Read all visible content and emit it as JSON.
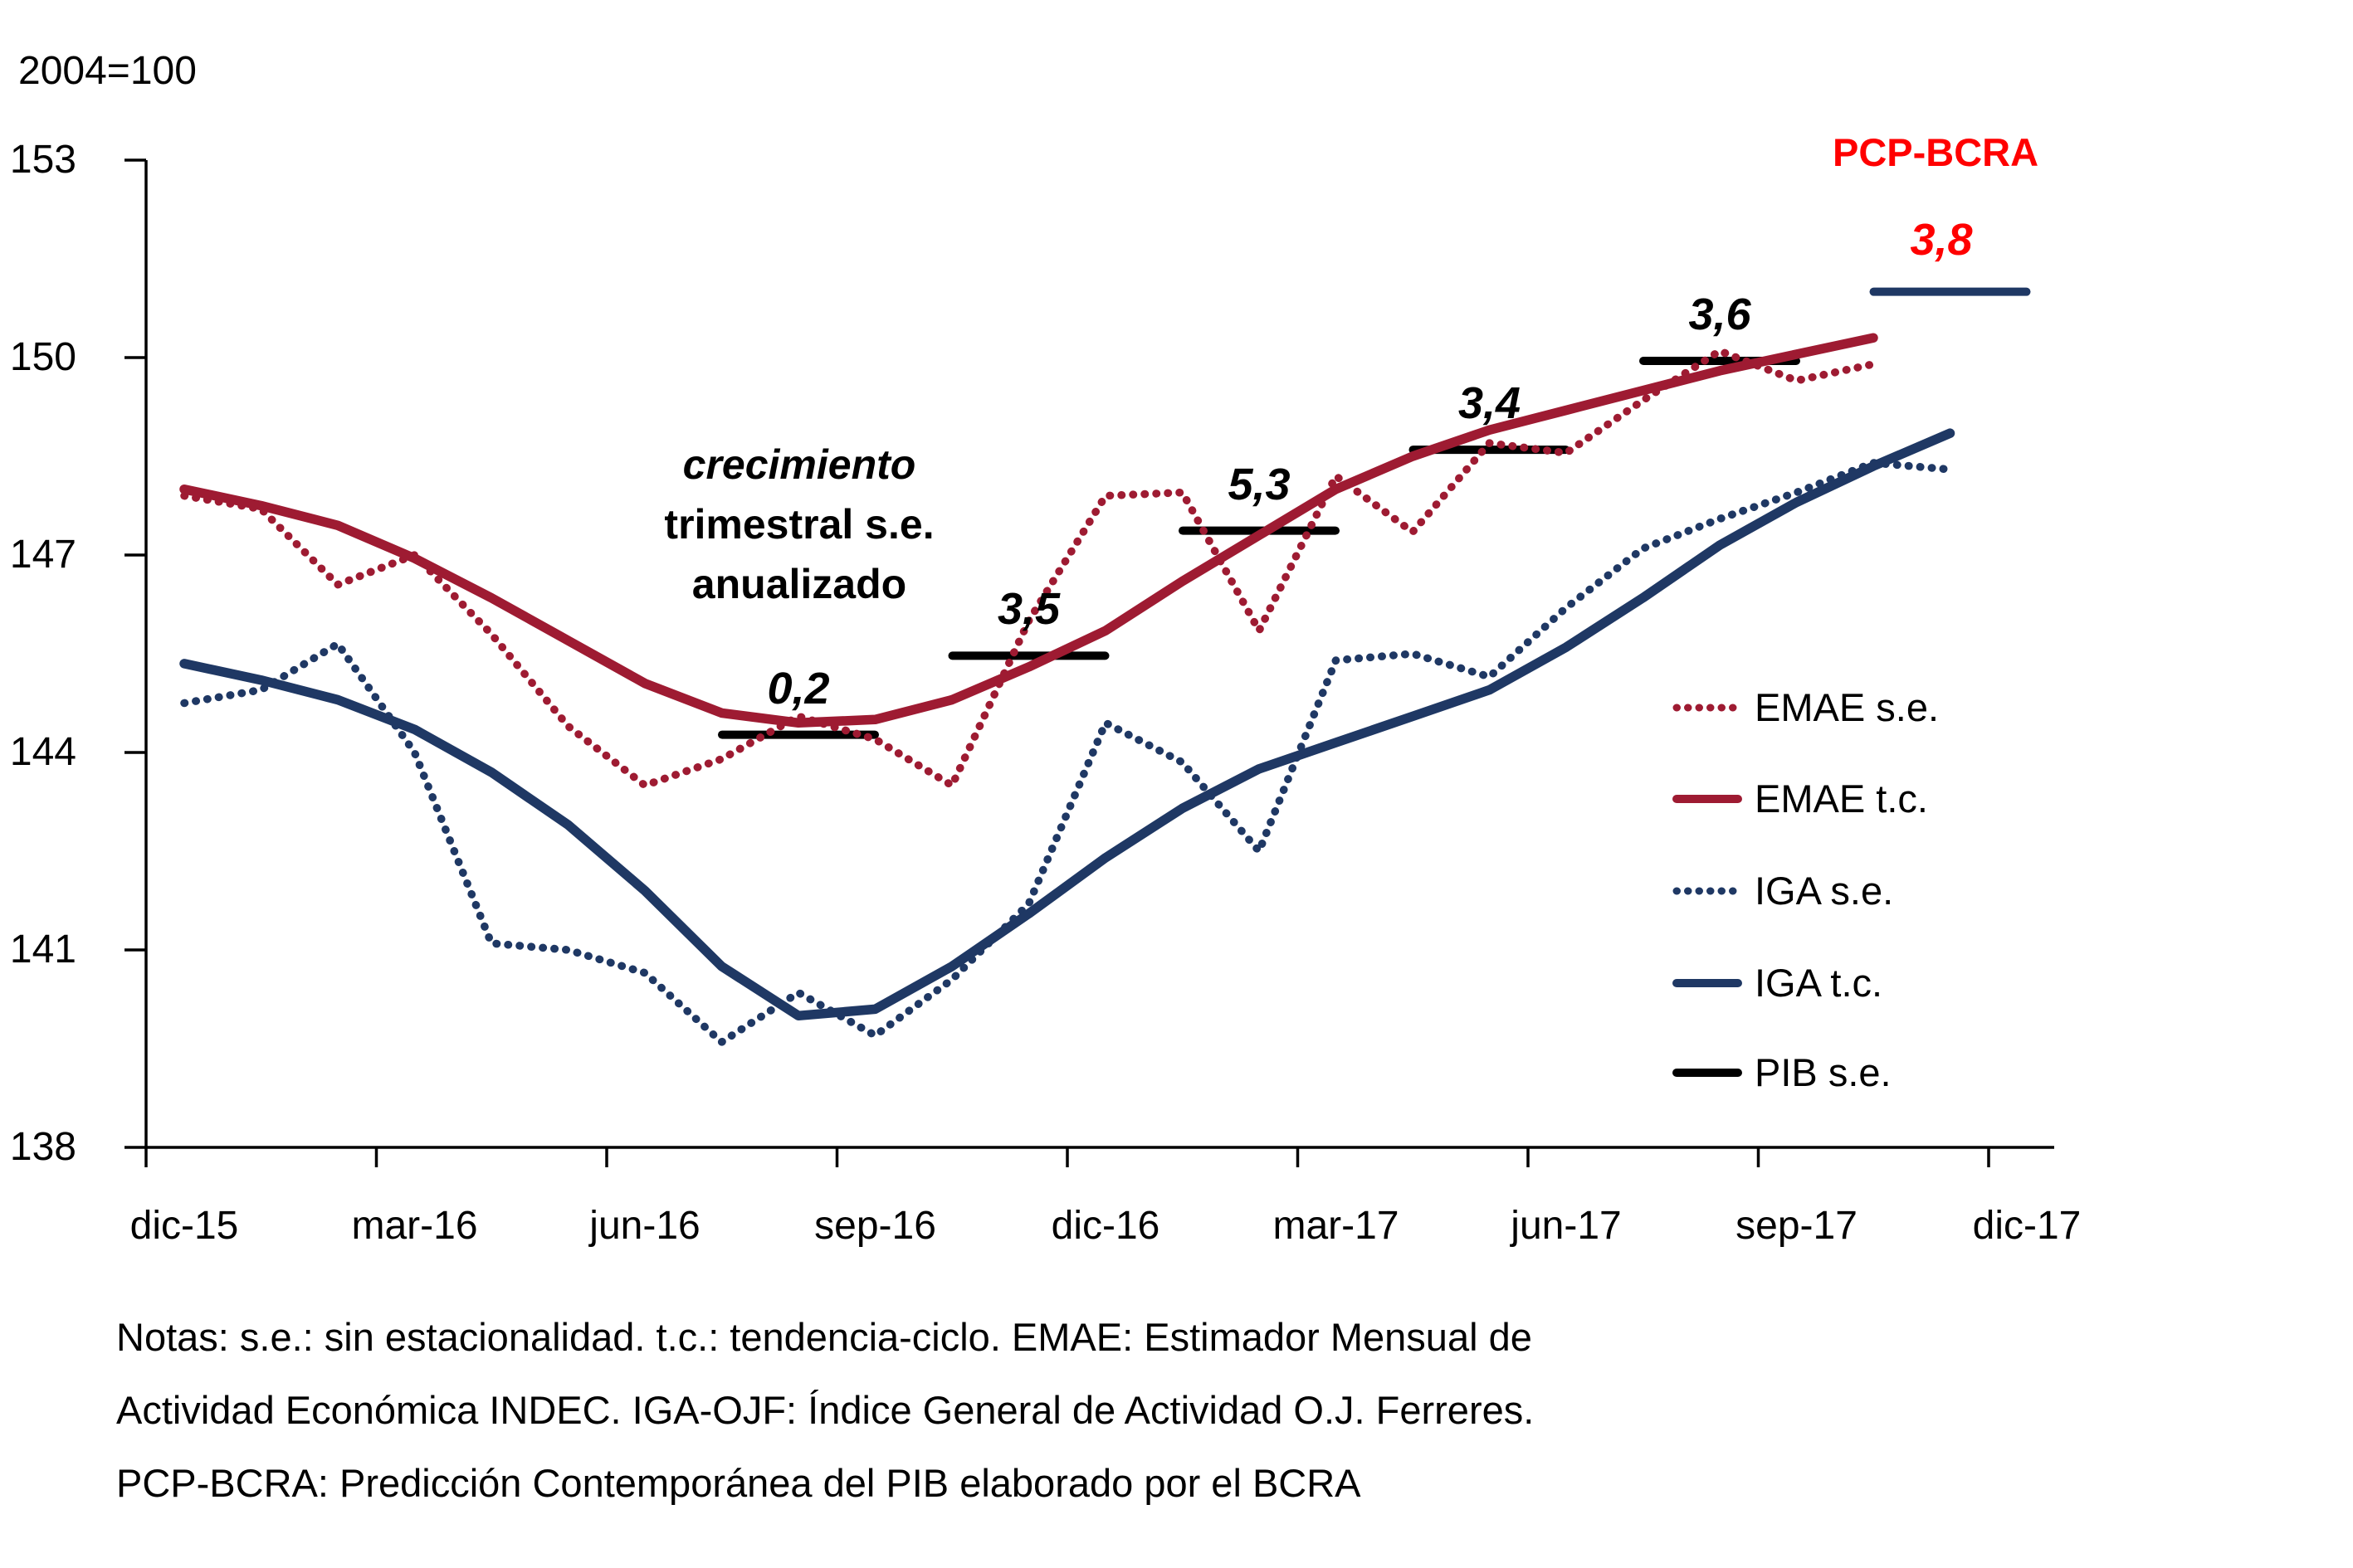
{
  "header": {
    "index_base": "2004=100"
  },
  "chart_data": {
    "type": "line",
    "title": "",
    "ylim": [
      138,
      153
    ],
    "yticks": [
      153,
      150,
      147,
      144,
      141,
      138
    ],
    "grid": "off",
    "legend_position": "middle-right",
    "x_quarter_labels": [
      "dic-15",
      "mar-16",
      "jun-16",
      "sep-16",
      "dic-16",
      "mar-17",
      "jun-17",
      "sep-17",
      "dic-17"
    ],
    "months": [
      "dic-15",
      "ene-16",
      "feb-16",
      "mar-16",
      "abr-16",
      "may-16",
      "jun-16",
      "jul-16",
      "ago-16",
      "sep-16",
      "oct-16",
      "nov-16",
      "dic-16",
      "ene-17",
      "feb-17",
      "mar-17",
      "abr-17",
      "may-17",
      "jun-17",
      "jul-17",
      "ago-17",
      "sep-17",
      "oct-17",
      "nov-17"
    ],
    "series": [
      {
        "name": "EMAE s.e.",
        "style": "dotted",
        "color": "#9E1B32",
        "values": [
          147.9,
          147.7,
          146.55,
          147.0,
          145.8,
          144.4,
          143.5,
          143.9,
          144.55,
          144.2,
          143.5,
          146.0,
          147.9,
          147.95,
          145.85,
          148.2,
          147.35,
          148.7,
          148.55,
          149.35,
          150.1,
          149.65,
          149.9
        ]
      },
      {
        "name": "EMAE t.c.",
        "style": "solid",
        "color": "#9E1B32",
        "values": [
          148.0,
          147.75,
          147.45,
          146.95,
          146.35,
          145.7,
          145.05,
          144.6,
          144.45,
          144.5,
          144.8,
          145.3,
          145.85,
          146.6,
          147.3,
          148.0,
          148.5,
          148.9,
          149.2,
          149.5,
          149.8,
          150.05,
          150.3
        ]
      },
      {
        "name": "IGA s.e.",
        "style": "dotted",
        "color": "#1F3864",
        "values": [
          144.75,
          144.95,
          145.65,
          144.0,
          141.1,
          141.0,
          140.65,
          139.6,
          140.35,
          139.7,
          140.55,
          141.7,
          144.45,
          143.85,
          142.5,
          145.4,
          145.5,
          145.15,
          146.2,
          147.1,
          147.55,
          147.95,
          148.4,
          148.3
        ]
      },
      {
        "name": "IGA t.c.",
        "style": "solid",
        "color": "#1F3864",
        "values": [
          145.35,
          145.1,
          144.8,
          144.35,
          143.7,
          142.9,
          141.9,
          140.75,
          140.0,
          140.1,
          140.75,
          141.55,
          142.4,
          143.15,
          143.75,
          144.15,
          144.55,
          144.95,
          145.6,
          146.35,
          147.15,
          147.8,
          148.35,
          148.85
        ]
      }
    ],
    "pib_quarterly_bars": {
      "name": "PIB s.e.",
      "color": "#000000",
      "bars": [
        {
          "label": "0,2",
          "center_month": "ago-16",
          "level": 144.27
        },
        {
          "label": "3,5",
          "center_month": "nov-16",
          "level": 145.47
        },
        {
          "label": "5,3",
          "center_month": "feb-17",
          "level": 147.37
        },
        {
          "label": "3,4",
          "center_month": "may-17",
          "level": 148.6
        },
        {
          "label": "3,6",
          "center_month": "ago-17",
          "level": 149.95
        }
      ]
    },
    "pcp_forecast": {
      "title": "PCP-BCRA",
      "label": "3,8",
      "center_month": "nov-17",
      "level": 151.0,
      "bar_color": "#1F3864",
      "text_color": "#FF0000"
    },
    "annotation": {
      "line1": "crecimiento",
      "line2": "trimestral s.e.",
      "line3": "anualizado"
    },
    "legend": {
      "items": [
        {
          "label": "EMAE s.e.",
          "style": "dotted",
          "color": "#9E1B32"
        },
        {
          "label": "EMAE t.c.",
          "style": "solid",
          "color": "#9E1B32"
        },
        {
          "label": "IGA s.e.",
          "style": "dotted",
          "color": "#1F3864"
        },
        {
          "label": "IGA t.c.",
          "style": "solid",
          "color": "#1F3864"
        },
        {
          "label": "PIB s.e.",
          "style": "solid",
          "color": "#000000"
        }
      ]
    }
  },
  "notes": {
    "line1": "Notas: s.e.: sin estacionalidad. t.c.: tendencia-ciclo. EMAE: Estimador Mensual de",
    "line2": "Actividad Económica INDEC. IGA-OJF: Índice General de Actividad O.J. Ferreres.",
    "line3": "PCP-BCRA: Predicción Contemporánea del PIB elaborado por el BCRA"
  }
}
